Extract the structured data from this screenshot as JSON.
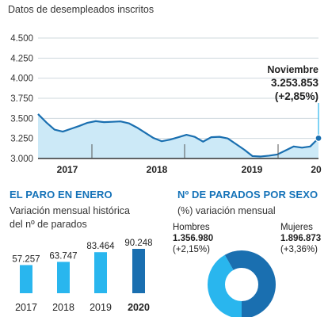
{
  "header": {
    "subtitle": "Datos de desempleados inscritos"
  },
  "colors": {
    "line": "#1a6fb0",
    "area": "#cce9f7",
    "light_bar": "#29b6ee",
    "dark_bar": "#1a6fb0",
    "grid": "#cfd8de",
    "title": "#1472b8"
  },
  "chart_data": [
    {
      "type": "area",
      "title": "",
      "ylim": [
        3000,
        4500
      ],
      "yticks": [
        3000,
        3250,
        3500,
        3750,
        4000,
        4250,
        4500
      ],
      "ytick_labels": [
        "3.000",
        "3.250",
        "3.500",
        "3.750",
        "4.000",
        "4.250",
        "4.500"
      ],
      "x_year_labels": [
        "2017",
        "2018",
        "2019",
        "20"
      ],
      "series": [
        {
          "values": [
            3553,
            3450,
            3360,
            3335,
            3370,
            3405,
            3445,
            3465,
            3453,
            3457,
            3462,
            3439,
            3385,
            3320,
            3255,
            3215,
            3235,
            3265,
            3295,
            3270,
            3210,
            3265,
            3270,
            3250,
            3180,
            3110,
            3030,
            3025,
            3035,
            3050,
            3100,
            3150,
            3135,
            3150,
            3253
          ]
        }
      ],
      "annotation": {
        "label": "Noviembre",
        "value": "3.253.853",
        "change": "(+2,85%)"
      }
    },
    {
      "type": "bar",
      "title": "EL PARO EN ENERO",
      "subtitle_lines": [
        "Variación mensual histórica",
        "del nº de parados"
      ],
      "categories": [
        "2017",
        "2018",
        "2019",
        "2020"
      ],
      "values": [
        57257,
        63747,
        83464,
        90248
      ],
      "value_labels": [
        "57.257",
        "63.747",
        "83.464",
        "90.248"
      ],
      "highlight": "2020"
    },
    {
      "type": "pie",
      "title": "Nº DE PARADOS POR SEXO",
      "subtitle": "(%) variación mensual",
      "slices": [
        {
          "label": "Hombres",
          "value": 1356980,
          "value_label": "1.356.980",
          "change": "(+2,15%)",
          "color": "#29b6ee"
        },
        {
          "label": "Mujeres",
          "value": 1896873,
          "value_label": "1.896.873",
          "change": "(+3,36%)",
          "color": "#1a6fb0"
        }
      ]
    }
  ]
}
